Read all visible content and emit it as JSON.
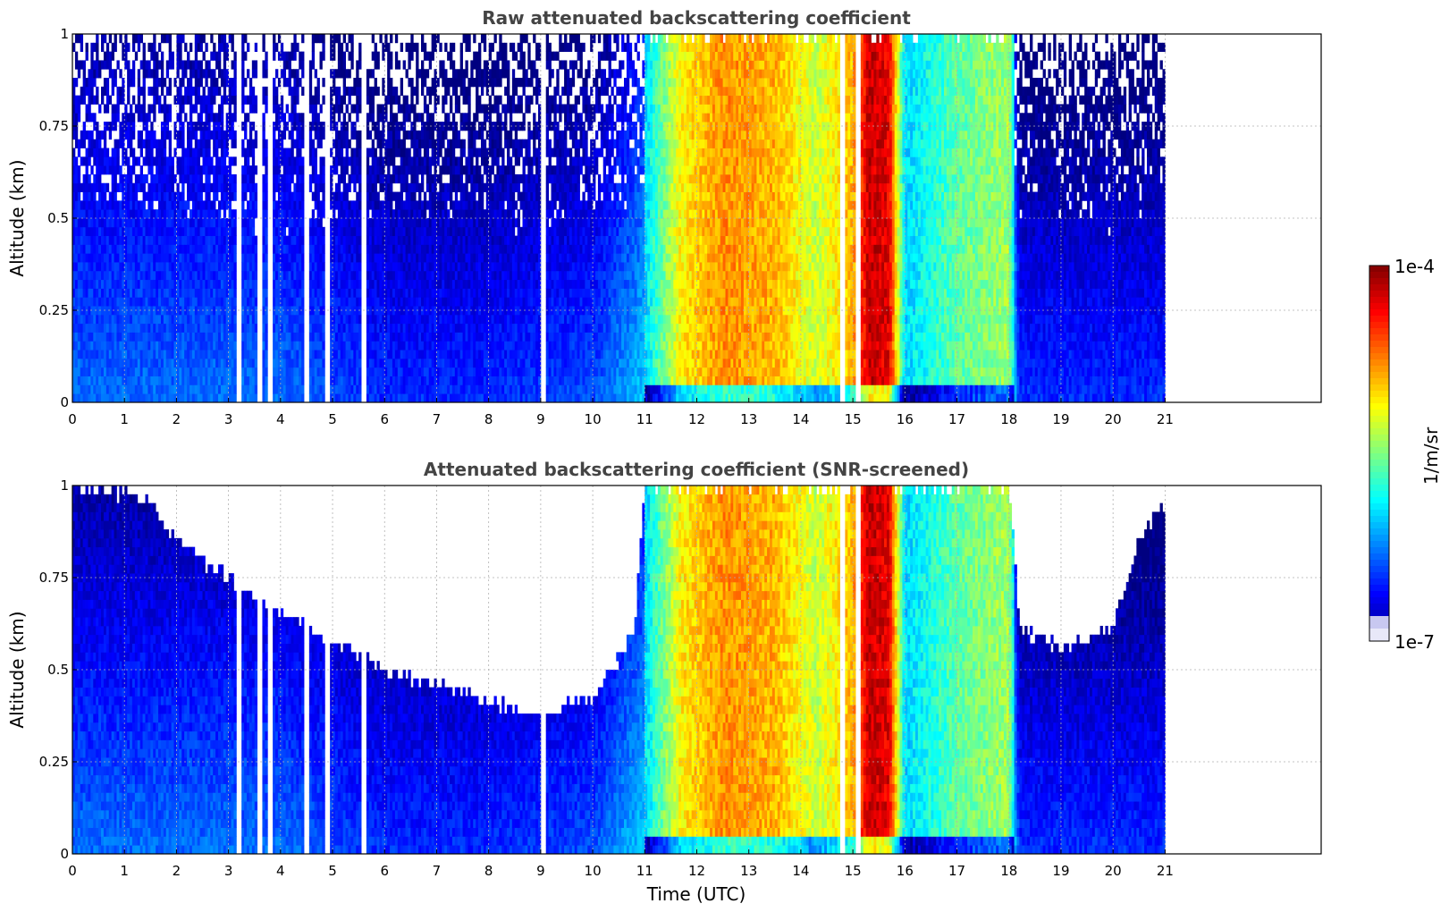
{
  "chart_data": [
    {
      "type": "heatmap",
      "title": "Raw attenuated backscattering coefficient",
      "xlabel": "",
      "ylabel": "Altitude (km)",
      "xlim": [
        0,
        24
      ],
      "ylim": [
        0,
        1
      ],
      "xticks": [
        "0",
        "1",
        "2",
        "3",
        "4",
        "5",
        "6",
        "7",
        "8",
        "9",
        "10",
        "11",
        "12",
        "13",
        "14",
        "15",
        "16",
        "17",
        "18",
        "19",
        "20",
        "21"
      ],
      "yticks": [
        "0",
        "0.25",
        "0.5",
        "0.75",
        "1"
      ],
      "grid": true,
      "data_end_hour": 21,
      "color_scale": "log",
      "time_profile": {
        "hours": [
          0,
          2,
          4,
          6,
          8,
          10,
          11,
          11.7,
          12.5,
          13.5,
          14.3,
          15.0,
          15.3,
          15.7,
          16.0,
          17.0,
          18.0,
          18.2,
          21
        ],
        "log10_beta_near_surface": [
          -6.3,
          -6.3,
          -6.3,
          -6.5,
          -6.5,
          -6.4,
          -6.0,
          -5.1,
          -4.8,
          -4.9,
          -5.3,
          -4.9,
          -4.2,
          -4.3,
          -6.0,
          -5.6,
          -5.4,
          -6.5,
          -6.5
        ]
      },
      "gaps_hours": [
        3.2,
        3.6,
        3.8,
        4.5,
        4.9,
        5.6,
        9.05,
        14.8,
        15.1
      ],
      "peak_column_hours": [
        15.3,
        15.7
      ],
      "max_annotation": "dark red near 1 km at ~15.5 UTC"
    },
    {
      "type": "heatmap",
      "title": "Attenuated backscattering coefficient (SNR-screened)",
      "xlabel": "Time (UTC)",
      "ylabel": "Altitude (km)",
      "xlim": [
        0,
        24
      ],
      "ylim": [
        0,
        1
      ],
      "xticks": [
        "0",
        "1",
        "2",
        "3",
        "4",
        "5",
        "6",
        "7",
        "8",
        "9",
        "10",
        "11",
        "12",
        "13",
        "14",
        "15",
        "16",
        "17",
        "18",
        "19",
        "20",
        "21"
      ],
      "yticks": [
        "0",
        "0.25",
        "0.5",
        "0.75",
        "1"
      ],
      "grid": true,
      "data_end_hour": 21,
      "color_scale": "log",
      "snr_top_km": {
        "hours": [
          0,
          1,
          1.5,
          2,
          3,
          4,
          5,
          6,
          7,
          8,
          9,
          10,
          10.8,
          11,
          18,
          18.2,
          19,
          20,
          20.5,
          21
        ],
        "altitude": [
          1.0,
          0.98,
          0.95,
          0.85,
          0.75,
          0.66,
          0.58,
          0.5,
          0.46,
          0.41,
          0.38,
          0.42,
          0.6,
          1.0,
          1.0,
          0.62,
          0.55,
          0.62,
          0.85,
          0.95
        ]
      }
    }
  ],
  "colorbar": {
    "label": "1/m/sr",
    "max_label": "1e-4",
    "min_label": "1e-7",
    "range_log10": [
      -7,
      -4
    ],
    "colormap": "jet"
  }
}
